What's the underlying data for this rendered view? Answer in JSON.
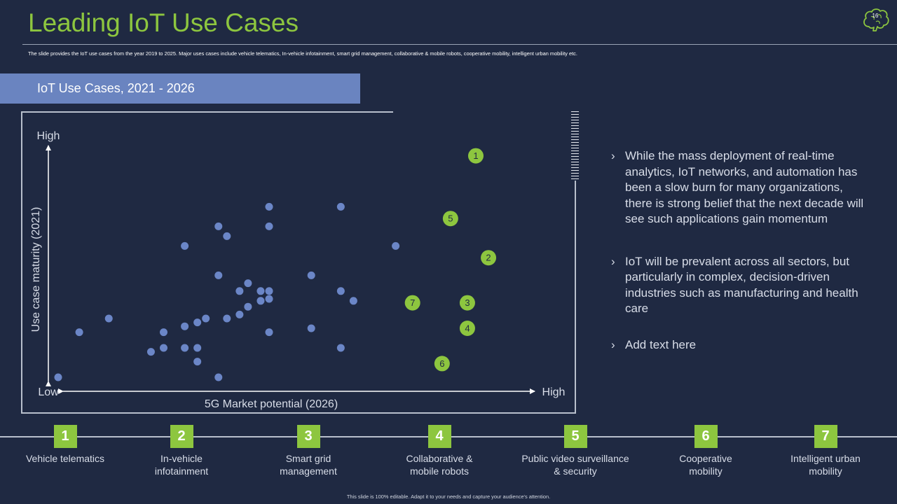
{
  "page": {
    "title": "Leading IoT Use Cases",
    "subtitle": "The slide provides the IoT use cases from the year 2019 to 2025. Major uses cases include vehicle telematics, In-vehicle infotainment, smart grid management, collaborative & mobile robots, cooperative mobility, intelligent urban mobility etc.",
    "slide_number": "16",
    "logo_icon": "brain-icon",
    "banner_title": "IoT Use Cases, 2021 - 2026",
    "footer": "This slide is 100% editable. Adapt it to your needs and capture your audience's attention."
  },
  "colors": {
    "background": "#1f2942",
    "accent_green": "#8dc63f",
    "dot_blue": "#6b86c7",
    "banner_blue": "#6a84c0",
    "axis": "#ffffff"
  },
  "bullets": [
    "While the mass deployment of real-time analytics, IoT networks, and automation has been a slow burn for many organizations, there is strong belief that the next decade will see such applications gain momentum",
    "IoT will be prevalent across all sectors, but particularly in complex, decision-driven industries such as manufacturing and health care",
    "Add text here"
  ],
  "legend": [
    {
      "num": "1",
      "label": "Vehicle telematics"
    },
    {
      "num": "2",
      "label": "In-vehicle infotainment"
    },
    {
      "num": "3",
      "label": "Smart grid management"
    },
    {
      "num": "4",
      "label": "Collaborative & mobile robots"
    },
    {
      "num": "5",
      "label": "Public video surveillance & security"
    },
    {
      "num": "6",
      "label": "Cooperative mobility"
    },
    {
      "num": "7",
      "label": "Intelligent urban mobility"
    }
  ],
  "chart_data": {
    "type": "scatter",
    "xlabel": "5G Market potential (2026)",
    "ylabel": "Use case maturity (2021)",
    "x_low_label": "Low",
    "x_high_label": "High",
    "y_high_label": "High",
    "xlim": [
      0,
      10
    ],
    "ylim": [
      0,
      10
    ],
    "series": [
      {
        "values": [
          [
            0.0,
            0.0
          ],
          [
            0.5,
            2.3
          ],
          [
            1.2,
            3.0
          ],
          [
            2.2,
            1.3
          ],
          [
            2.5,
            1.5
          ],
          [
            2.5,
            2.3
          ],
          [
            3.0,
            1.5
          ],
          [
            3.0,
            2.6
          ],
          [
            3.0,
            6.7
          ],
          [
            3.3,
            0.8
          ],
          [
            3.3,
            1.5
          ],
          [
            3.3,
            2.8
          ],
          [
            3.5,
            3.0
          ],
          [
            3.8,
            0.0
          ],
          [
            3.8,
            5.2
          ],
          [
            3.8,
            7.7
          ],
          [
            4.0,
            3.0
          ],
          [
            4.0,
            7.2
          ],
          [
            4.3,
            3.2
          ],
          [
            4.3,
            4.4
          ],
          [
            4.5,
            3.6
          ],
          [
            4.5,
            4.8
          ],
          [
            4.8,
            3.9
          ],
          [
            4.8,
            4.4
          ],
          [
            5.0,
            2.3
          ],
          [
            5.0,
            4.0
          ],
          [
            5.0,
            4.4
          ],
          [
            5.0,
            7.7
          ],
          [
            5.0,
            8.7
          ],
          [
            6.0,
            2.5
          ],
          [
            6.0,
            5.2
          ],
          [
            6.7,
            1.5
          ],
          [
            6.7,
            4.4
          ],
          [
            6.7,
            8.7
          ],
          [
            7.0,
            3.9
          ],
          [
            8.0,
            6.7
          ]
        ]
      },
      {
        "labeled_points": [
          {
            "label": "1",
            "x": 9.9,
            "y": 11.3
          },
          {
            "label": "2",
            "x": 10.2,
            "y": 6.1
          },
          {
            "label": "3",
            "x": 9.7,
            "y": 3.8
          },
          {
            "label": "4",
            "x": 9.7,
            "y": 2.5
          },
          {
            "label": "5",
            "x": 9.3,
            "y": 8.1
          },
          {
            "label": "6",
            "x": 9.1,
            "y": 0.7
          },
          {
            "label": "7",
            "x": 8.4,
            "y": 3.8
          }
        ]
      }
    ],
    "grid": false
  }
}
